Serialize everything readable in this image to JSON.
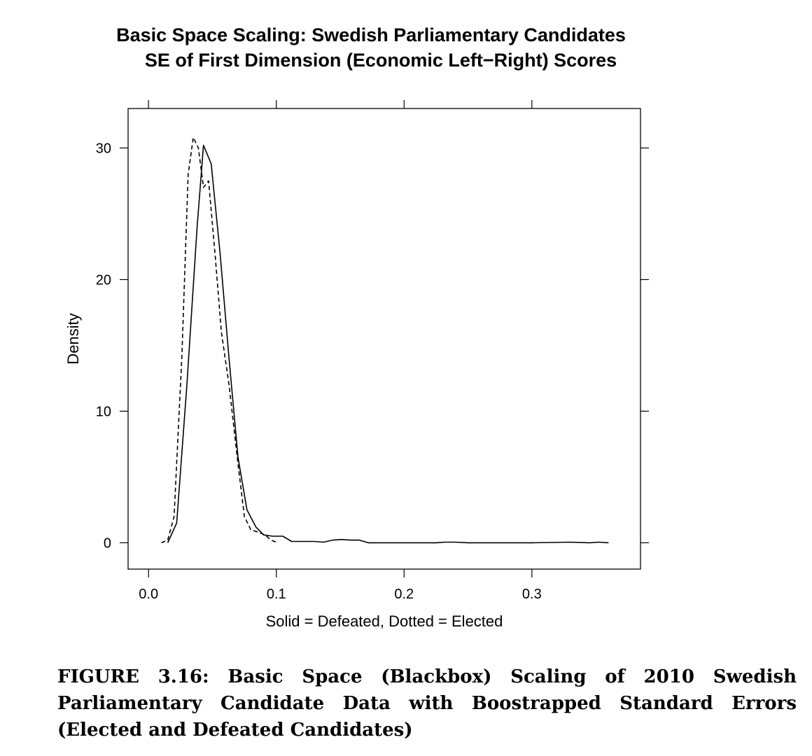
{
  "chart_data": {
    "type": "line",
    "title": "Basic Space Scaling: Swedish Parliamentary Candidates",
    "subtitle": "SE of First Dimension (Economic Left−Right) Scores",
    "xlabel": "Solid = Defeated, Dotted = Elected",
    "ylabel": "Density",
    "xlim": [
      -0.016,
      0.385
    ],
    "ylim": [
      -2,
      33
    ],
    "x_ticks": [
      0.0,
      0.1,
      0.2,
      0.3
    ],
    "x_tick_labels": [
      "0.0",
      "0.1",
      "0.2",
      "0.3"
    ],
    "y_ticks": [
      0,
      10,
      20,
      30
    ],
    "y_tick_labels": [
      "0",
      "10",
      "20",
      "30"
    ],
    "grid": false,
    "series": [
      {
        "style": "solid",
        "x": [
          0.015,
          0.022,
          0.03,
          0.038,
          0.043,
          0.049,
          0.056,
          0.063,
          0.07,
          0.077,
          0.084,
          0.09,
          0.097,
          0.105,
          0.112,
          0.122,
          0.13,
          0.137,
          0.144,
          0.151,
          0.158,
          0.165,
          0.172,
          0.2,
          0.225,
          0.232,
          0.24,
          0.25,
          0.3,
          0.33,
          0.345,
          0.352,
          0.36
        ],
        "y": [
          0.0,
          1.5,
          12.0,
          24.0,
          30.2,
          28.8,
          22.0,
          14.0,
          6.5,
          2.5,
          1.2,
          0.6,
          0.5,
          0.5,
          0.1,
          0.1,
          0.1,
          0.05,
          0.2,
          0.25,
          0.2,
          0.2,
          0.0,
          0.0,
          0.0,
          0.05,
          0.05,
          0.0,
          0.0,
          0.05,
          0.0,
          0.05,
          0.0
        ]
      },
      {
        "style": "dotted",
        "x": [
          0.01,
          0.015,
          0.02,
          0.026,
          0.031,
          0.035,
          0.039,
          0.043,
          0.047,
          0.052,
          0.057,
          0.063,
          0.07,
          0.075,
          0.08,
          0.086,
          0.091,
          0.096,
          0.101
        ],
        "y": [
          0.0,
          0.2,
          2.0,
          14.0,
          28.0,
          30.8,
          30.0,
          27.0,
          27.5,
          22.0,
          16.0,
          12.0,
          6.0,
          2.0,
          1.0,
          0.8,
          0.6,
          0.2,
          0.0
        ]
      }
    ]
  },
  "caption": "FIGURE 3.16: Basic Space (Blackbox) Scaling of 2010 Swedish Parliamentary Candidate Data with Boostrapped Standard Errors (Elected and Defeated Candidates)"
}
